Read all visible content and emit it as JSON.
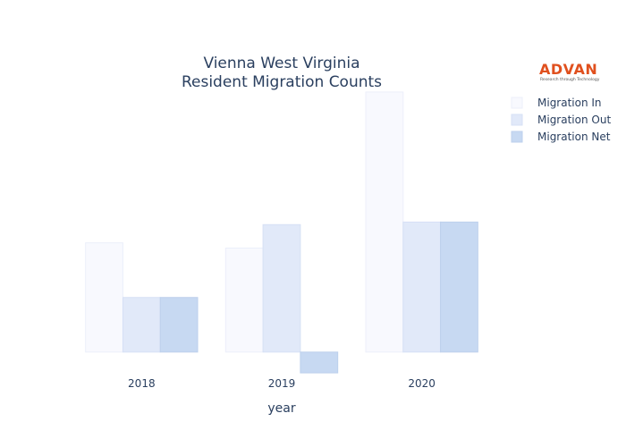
{
  "logo": {
    "name": "ADVAN",
    "tagline": "Research through Technology",
    "color": "#e0501e"
  },
  "chart_data": {
    "type": "bar",
    "title": "Vienna West Virginia",
    "subtitle": "Resident Migration Counts",
    "xlabel": "year",
    "ylabel": "",
    "categories": [
      "2018",
      "2019",
      "2020"
    ],
    "series": [
      {
        "name": "Migration In",
        "values": [
          42,
          40,
          100
        ],
        "color": "#f8f9fe",
        "stroke": "#eceffa"
      },
      {
        "name": "Migration Out",
        "values": [
          21,
          49,
          50
        ],
        "color": "#e1e9f9",
        "stroke": "#d6e0f5"
      },
      {
        "name": "Migration Net",
        "values": [
          21,
          -8,
          50
        ],
        "color": "#c7d9f2",
        "stroke": "#bdd0ec"
      }
    ],
    "ylim": [
      -9,
      101
    ],
    "grid": false,
    "legend_position": "top-right"
  }
}
